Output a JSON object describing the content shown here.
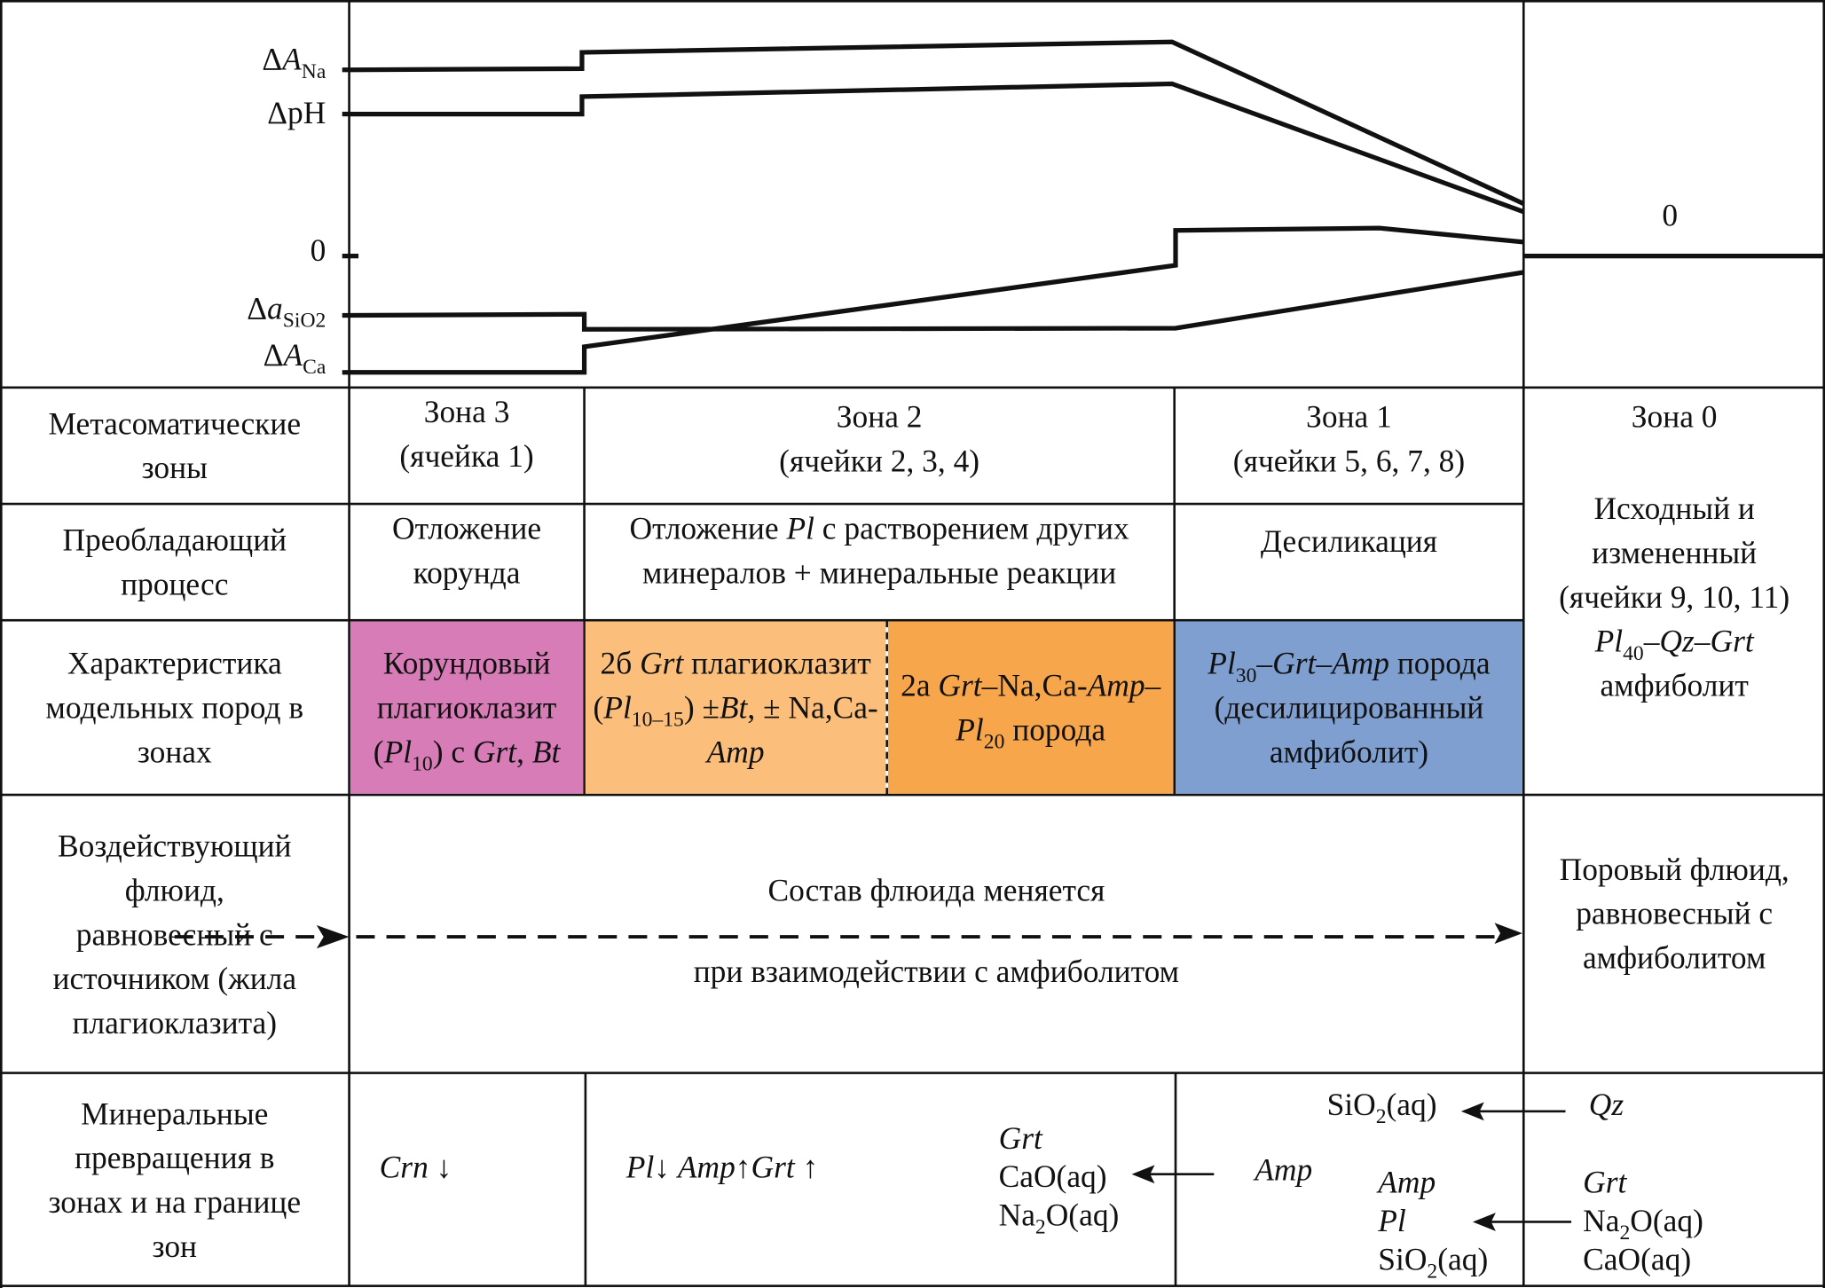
{
  "chart": {
    "labels": [
      [
        [
          "Δ",
          ""
        ],
        [
          "A",
          "i"
        ],
        [
          "Na",
          "sub"
        ]
      ],
      [
        [
          "ΔpH",
          ""
        ]
      ],
      [
        [
          "0",
          ""
        ]
      ],
      [
        [
          "Δ",
          ""
        ],
        [
          "a",
          "i"
        ],
        [
          "SiO",
          "sub"
        ],
        [
          "2",
          "sub"
        ]
      ],
      [
        [
          "Δ",
          ""
        ],
        [
          "A",
          "i"
        ],
        [
          "Ca",
          "sub"
        ]
      ]
    ],
    "zone0_value": "0"
  },
  "row_headers": [
    "Метасоматические зоны",
    "Преобладающий процесс",
    "Характеристика модельных пород в зонах",
    "Воздействующий флюид, равновесный с источником (жила плагиоклазита)",
    "Минеральные превращения в зонах и на границе зон"
  ],
  "zones": [
    {
      "name": "Зона 3",
      "cells": "(ячейка 1)"
    },
    {
      "name": "Зона 2",
      "cells": "(ячейки 2, 3, 4)"
    },
    {
      "name": "Зона 1",
      "cells": "(ячейки 5, 6, 7, 8)"
    },
    {
      "name": "Зона 0"
    }
  ],
  "processes": [
    [
      [
        "Отложение корунда",
        ""
      ]
    ],
    [
      [
        "Отложение ",
        ""
      ],
      [
        "Pl",
        "i"
      ],
      [
        " с растворением других минералов + минеральные реакции",
        ""
      ]
    ],
    [
      [
        "Десиликация",
        ""
      ]
    ]
  ],
  "zone0_description": [
    [
      "Исходный и измененный (ячейки 9, 10, 11) ",
      ""
    ],
    [
      "Pl",
      "i"
    ],
    [
      "40",
      "sub"
    ],
    [
      "–",
      "i"
    ],
    [
      "Qz",
      "i"
    ],
    [
      "–",
      "i"
    ],
    [
      "Grt",
      "i"
    ],
    [
      " амфиболит",
      ""
    ]
  ],
  "rocks": {
    "colors": {
      "zone3": "#d87cb7",
      "zone2b": "#fbbf7b",
      "zone2a": "#f8a64c",
      "zone1": "#7f9fd0"
    },
    "zone3": [
      [
        "Корундовый плагиоклазит (",
        ""
      ],
      [
        "Pl",
        "i"
      ],
      [
        "10",
        "sub"
      ],
      [
        ") с ",
        ""
      ],
      [
        "Grt",
        "i"
      ],
      [
        ", ",
        ""
      ],
      [
        "Bt",
        "i"
      ]
    ],
    "zone2b": [
      [
        "2б ",
        ""
      ],
      [
        "Grt",
        "i"
      ],
      [
        " плагиоклазит (",
        ""
      ],
      [
        "Pl",
        "i"
      ],
      [
        "10–15",
        "sub"
      ],
      [
        ") ±",
        ""
      ],
      [
        "Bt",
        "i"
      ],
      [
        ", ± Na,Ca-",
        ""
      ],
      [
        "Amp",
        "i"
      ]
    ],
    "zone2a": [
      [
        "2а ",
        ""
      ],
      [
        "Grt",
        "i"
      ],
      [
        "–Na,Ca-",
        ""
      ],
      [
        "Amp",
        "i"
      ],
      [
        "– ",
        ""
      ],
      [
        "Pl",
        "i"
      ],
      [
        "20",
        "sub"
      ],
      [
        " порода",
        ""
      ]
    ],
    "zone1": [
      [
        "Pl",
        "i"
      ],
      [
        "30",
        "sub"
      ],
      [
        "–",
        "i"
      ],
      [
        "Grt",
        "i"
      ],
      [
        "–",
        "i"
      ],
      [
        "Amp",
        "i"
      ],
      [
        " порода (десилицированный амфиболит)",
        ""
      ]
    ]
  },
  "fluid": {
    "line1": "Состав флюида меняется",
    "line2": "при взаимодействии с амфиболитом",
    "zone0": "Поровый флюид, равновесный с амфиболитом"
  },
  "minerals": {
    "zone3": [
      [
        "Crn",
        "i"
      ],
      [
        " ↓",
        ""
      ]
    ],
    "zone2": [
      [
        "Pl",
        "i"
      ],
      [
        "↓ ",
        ""
      ],
      [
        "Amp",
        "i"
      ],
      [
        "↑",
        ""
      ],
      [
        "Grt",
        "i"
      ],
      [
        " ↑",
        ""
      ]
    ],
    "border21_products": [
      [
        "Grt",
        "i"
      ],
      [
        "\nCaO(aq)\nNa",
        ""
      ],
      [
        "2",
        "sub"
      ],
      [
        "O(aq)",
        ""
      ]
    ],
    "zone1_source": [
      [
        "Amp",
        "i"
      ]
    ],
    "border10_top_product": [
      [
        "SiO",
        ""
      ],
      [
        "2",
        "sub"
      ],
      [
        "(aq)",
        ""
      ]
    ],
    "zone0_top_source": [
      [
        "Qz",
        "i"
      ]
    ],
    "zone1_products": [
      [
        "Amp",
        "i"
      ],
      [
        "\n",
        ""
      ],
      [
        "Pl",
        "i"
      ],
      [
        "\nSiO",
        ""
      ],
      [
        "2",
        "sub"
      ],
      [
        "(aq)",
        ""
      ]
    ],
    "zone0_sources": [
      [
        "Grt",
        "i"
      ],
      [
        "\nNa",
        ""
      ],
      [
        "2",
        "sub"
      ],
      [
        "O(aq)\nCaO(aq)",
        ""
      ]
    ]
  }
}
